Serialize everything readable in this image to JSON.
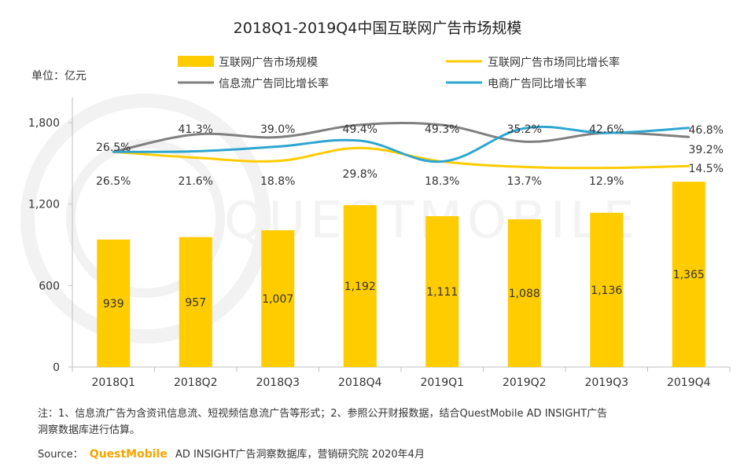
{
  "chart_data": {
    "type": "bar+line",
    "title": "2018Q1-2019Q4中国互联网广告市场规模",
    "unit_label": "单位：亿元",
    "categories": [
      "2018Q1",
      "2018Q2",
      "2018Q3",
      "2018Q4",
      "2019Q1",
      "2019Q2",
      "2019Q3",
      "2019Q4"
    ],
    "ylim": [
      0,
      1800
    ],
    "yticks": [
      0,
      600,
      1200,
      1800
    ],
    "ytick_labels": [
      "0",
      "600",
      "1,200",
      "1,800"
    ],
    "bar_series": {
      "name": "互联网广告市场规模",
      "values": [
        939,
        957,
        1007,
        1192,
        1111,
        1088,
        1136,
        1365
      ],
      "labels": [
        "939",
        "957",
        "1,007",
        "1,192",
        "1,111",
        "1,088",
        "1,136",
        "1,365"
      ]
    },
    "line_series": [
      {
        "name": "互联网广告市场同比增长率",
        "values": [
          26.5,
          21.6,
          18.8,
          29.8,
          18.3,
          13.7,
          12.9,
          14.5
        ],
        "labels": [
          "26.5%",
          "21.6%",
          "18.8%",
          "29.8%",
          "18.3%",
          "13.7%",
          "12.9%",
          "14.5%"
        ]
      },
      {
        "name": "信息流广告同比增长率",
        "values": [
          26.5,
          41.3,
          39.0,
          49.4,
          49.3,
          35.2,
          42.6,
          39.2
        ],
        "labels": [
          "26.5%",
          "41.3%",
          "39.0%",
          "49.4%",
          "49.3%",
          "35.2%",
          "42.6%",
          "39.2%"
        ]
      },
      {
        "name": "电商广告同比增长率",
        "values": [
          26.5,
          27.0,
          31.0,
          36.0,
          18.3,
          46.5,
          42.6,
          46.8
        ],
        "labels": [
          "46.8%"
        ]
      }
    ],
    "colors": {
      "bar": "#FFCC00",
      "market_growth": "#FFCC00",
      "feed_growth": "#7F7F7F",
      "ecommerce_growth": "#2EA6CF",
      "brand": "#F5A400",
      "axis": "#BFBFBF"
    }
  },
  "footer": {
    "note_line1": "注：1、信息流广告为含资讯信息流、短视频信息流广告等形式；2、参照公开财报数据，结合QuestMobile AD INSIGHT广告",
    "note_line2": "洞察数据库进行估算。",
    "source_label": "Source：",
    "source_brand": "QuestMobile",
    "source_rest": "AD INSIGHT广告洞察数据库，营销研究院 2020年4月"
  },
  "watermark": {
    "text": "QUESTMOBILE"
  }
}
